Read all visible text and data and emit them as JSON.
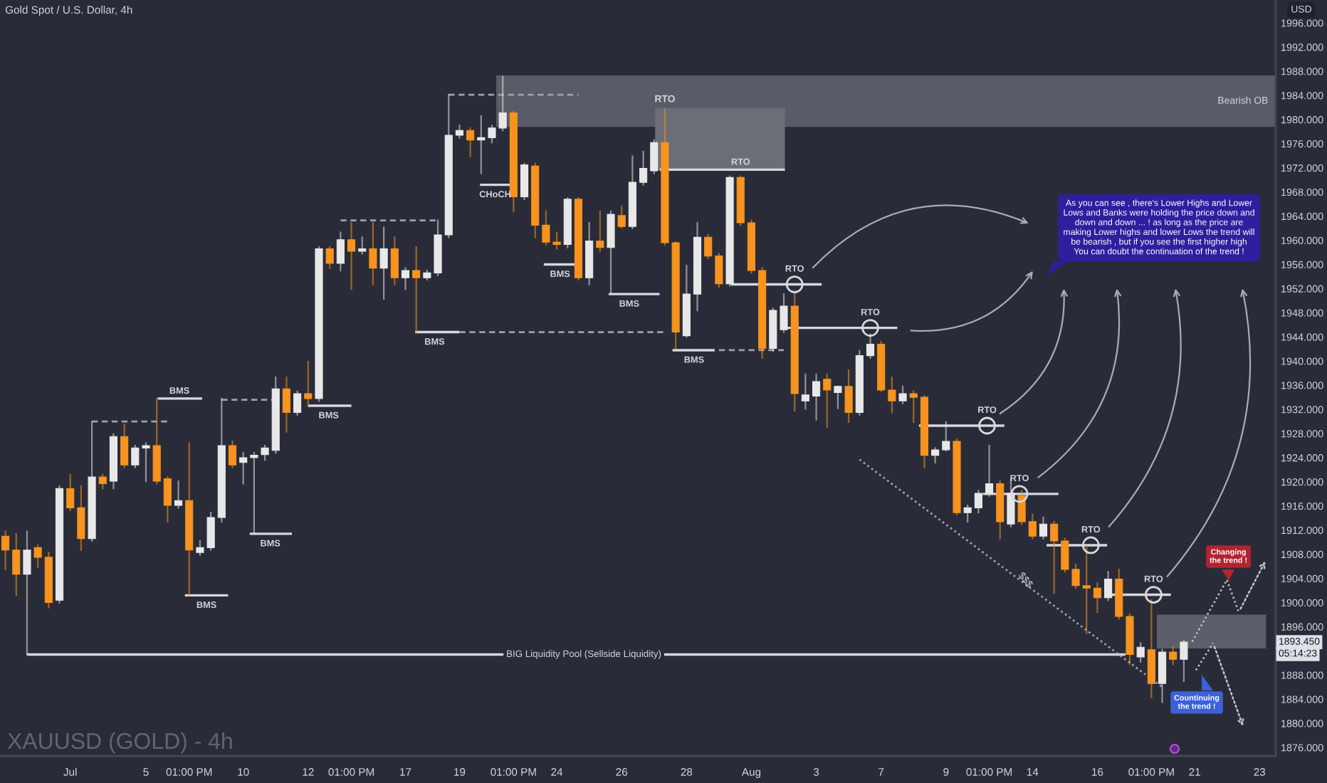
{
  "chart_data": {
    "type": "candlestick",
    "title": "Gold Spot / U.S. Dollar, 4h",
    "ylabel": "USD",
    "categories": [
      null,
      null,
      null,
      null,
      null,
      null,
      "Jul",
      null,
      null,
      null,
      null,
      null,
      null,
      "5",
      null,
      null,
      null,
      "01:00 PM",
      null,
      null,
      null,
      null,
      "10",
      null,
      null,
      null,
      null,
      null,
      "12",
      null,
      null,
      null,
      "01:00 PM",
      null,
      null,
      null,
      null,
      "17",
      null,
      null,
      null,
      null,
      "19",
      null,
      null,
      null,
      null,
      "01:00 PM",
      null,
      null,
      null,
      "24",
      null,
      null,
      null,
      null,
      null,
      "26",
      null,
      null,
      null,
      null,
      null,
      "28",
      null,
      null,
      null,
      null,
      null,
      "Aug",
      null,
      null,
      null,
      null,
      null,
      "3",
      null,
      null,
      null,
      null,
      null,
      "7",
      null,
      null,
      null,
      null,
      null,
      "9",
      null,
      null,
      null,
      "01:00 PM",
      null,
      null,
      null,
      "14",
      null,
      null,
      null,
      null,
      null,
      "16",
      null,
      null,
      null,
      null,
      "01:00 PM",
      null,
      null,
      null,
      "21",
      null,
      null,
      null,
      null,
      null,
      "23",
      null
    ],
    "ohlc": [
      [
        1911.0,
        1911.8,
        1905.5,
        1908.7
      ],
      [
        1908.7,
        1911.4,
        1901.2,
        1904.7
      ],
      [
        1904.7,
        1911.8,
        1891.4,
        1908.7
      ],
      [
        1909.1,
        1909.5,
        1905.9,
        1907.5
      ],
      [
        1907.5,
        1908.3,
        1899.2,
        1900.0
      ],
      [
        1900.4,
        1919.3,
        1900.0,
        1918.9
      ],
      [
        1918.9,
        1921.2,
        1915.3,
        1915.7
      ],
      [
        1915.7,
        1919.3,
        1908.7,
        1910.6
      ],
      [
        1910.6,
        1929.9,
        1910.2,
        1920.8
      ],
      [
        1920.8,
        1921.2,
        1918.9,
        1919.7
      ],
      [
        1920.1,
        1927.9,
        1918.9,
        1927.5
      ],
      [
        1927.5,
        1929.5,
        1922.4,
        1922.8
      ],
      [
        1922.8,
        1926.0,
        1922.4,
        1925.6
      ],
      [
        1925.6,
        1926.4,
        1920.1,
        1926.0
      ],
      [
        1926.0,
        1933.8,
        1919.7,
        1920.1
      ],
      [
        1920.5,
        1920.8,
        1913.4,
        1916.1
      ],
      [
        1916.1,
        1920.1,
        1915.7,
        1916.9
      ],
      [
        1916.9,
        1926.4,
        1901.2,
        1908.7
      ],
      [
        1908.3,
        1910.2,
        1907.9,
        1909.1
      ],
      [
        1909.1,
        1914.9,
        1908.7,
        1914.1
      ],
      [
        1914.1,
        1933.8,
        1913.4,
        1926.0
      ],
      [
        1926.0,
        1926.7,
        1922.4,
        1922.8
      ],
      [
        1923.2,
        1924.8,
        1919.7,
        1924.0
      ],
      [
        1924.0,
        1924.8,
        1911.4,
        1924.4
      ],
      [
        1924.5,
        1926.0,
        1923.6,
        1925.6
      ],
      [
        1925.2,
        1937.3,
        1924.8,
        1935.4
      ],
      [
        1935.4,
        1937.3,
        1928.3,
        1931.5
      ],
      [
        1931.5,
        1935.0,
        1931.1,
        1934.6
      ],
      [
        1934.6,
        1939.9,
        1932.6,
        1933.8
      ],
      [
        1933.8,
        1958.9,
        1933.4,
        1958.6
      ],
      [
        1958.6,
        1958.9,
        1955.4,
        1956.2
      ],
      [
        1956.2,
        1961.3,
        1955.0,
        1960.1
      ],
      [
        1960.1,
        1962.9,
        1951.9,
        1958.2
      ],
      [
        1958.2,
        1960.5,
        1957.8,
        1958.6
      ],
      [
        1958.6,
        1962.9,
        1952.7,
        1955.4
      ],
      [
        1955.4,
        1962.1,
        1950.3,
        1958.6
      ],
      [
        1958.6,
        1960.5,
        1952.7,
        1953.8
      ],
      [
        1953.8,
        1955.4,
        1951.9,
        1955.0
      ],
      [
        1955.0,
        1958.9,
        1944.8,
        1953.8
      ],
      [
        1953.8,
        1955.0,
        1953.5,
        1954.6
      ],
      [
        1954.6,
        1963.3,
        1954.2,
        1960.9
      ],
      [
        1960.9,
        1984.1,
        1960.5,
        1977.4
      ],
      [
        1977.4,
        1979.0,
        1977.0,
        1978.2
      ],
      [
        1978.2,
        1978.6,
        1973.9,
        1976.6
      ],
      [
        1976.6,
        1980.6,
        1971.1,
        1977.0
      ],
      [
        1977.0,
        1979.0,
        1976.2,
        1978.6
      ],
      [
        1978.6,
        1987.1,
        1978.2,
        1981.1
      ],
      [
        1981.1,
        1981.3,
        1964.8,
        1967.2
      ],
      [
        1967.2,
        1972.7,
        1966.8,
        1972.5
      ],
      [
        1972.3,
        1972.7,
        1960.5,
        1962.5
      ],
      [
        1962.5,
        1964.8,
        1959.3,
        1959.7
      ],
      [
        1959.7,
        1961.3,
        1958.6,
        1959.3
      ],
      [
        1959.3,
        1967.0,
        1958.8,
        1966.8
      ],
      [
        1966.8,
        1967.0,
        1953.5,
        1953.8
      ],
      [
        1953.8,
        1962.9,
        1952.7,
        1959.9
      ],
      [
        1959.9,
        1964.8,
        1958.2,
        1958.8
      ],
      [
        1958.8,
        1964.8,
        1951.1,
        1964.3
      ],
      [
        1964.1,
        1965.6,
        1962.1,
        1962.3
      ],
      [
        1962.3,
        1973.9,
        1962.0,
        1969.6
      ],
      [
        1969.6,
        1974.7,
        1969.2,
        1971.9
      ],
      [
        1971.5,
        1976.6,
        1971.1,
        1976.2
      ],
      [
        1976.2,
        1981.7,
        1959.3,
        1959.6
      ],
      [
        1959.6,
        1959.7,
        1942.1,
        1944.8
      ],
      [
        1944.2,
        1955.8,
        1944.0,
        1951.1
      ],
      [
        1951.1,
        1962.9,
        1948.4,
        1960.5
      ],
      [
        1960.5,
        1960.9,
        1957.0,
        1957.4
      ],
      [
        1957.4,
        1957.8,
        1952.3,
        1952.8
      ],
      [
        1952.8,
        1970.6,
        1952.5,
        1970.4
      ],
      [
        1970.4,
        1970.6,
        1962.5,
        1962.9
      ],
      [
        1962.9,
        1963.3,
        1954.6,
        1955.0
      ],
      [
        1955.0,
        1955.4,
        1940.5,
        1942.1
      ],
      [
        1942.1,
        1948.7,
        1941.7,
        1948.4
      ],
      [
        1945.2,
        1951.1,
        1944.8,
        1949.1
      ],
      [
        1949.1,
        1951.5,
        1931.8,
        1934.6
      ],
      [
        1933.4,
        1937.8,
        1932.1,
        1934.4
      ],
      [
        1934.2,
        1937.8,
        1930.3,
        1936.6
      ],
      [
        1937.0,
        1937.8,
        1929.1,
        1935.2
      ],
      [
        1934.8,
        1935.8,
        1932.2,
        1935.8
      ],
      [
        1935.8,
        1938.5,
        1929.9,
        1931.5
      ],
      [
        1931.5,
        1941.7,
        1931.1,
        1940.9
      ],
      [
        1940.9,
        1944.4,
        1940.5,
        1942.8
      ],
      [
        1942.8,
        1943.2,
        1935.0,
        1935.2
      ],
      [
        1935.2,
        1937.3,
        1931.5,
        1933.4
      ],
      [
        1933.4,
        1935.8,
        1933.0,
        1934.6
      ],
      [
        1934.6,
        1935.0,
        1929.9,
        1934.0
      ],
      [
        1934.0,
        1934.2,
        1922.4,
        1924.4
      ],
      [
        1924.4,
        1925.6,
        1923.2,
        1925.3
      ],
      [
        1925.3,
        1929.9,
        1925.2,
        1926.7
      ],
      [
        1926.7,
        1927.1,
        1914.6,
        1914.9
      ],
      [
        1914.9,
        1916.1,
        1913.4,
        1915.7
      ],
      [
        1915.7,
        1918.5,
        1914.9,
        1918.1
      ],
      [
        1918.1,
        1926.0,
        1917.7,
        1919.7
      ],
      [
        1919.7,
        1920.1,
        1910.6,
        1913.4
      ],
      [
        1913.0,
        1920.5,
        1912.6,
        1918.1
      ],
      [
        1917.7,
        1918.5,
        1913.0,
        1913.4
      ],
      [
        1913.4,
        1914.6,
        1910.6,
        1911.0
      ],
      [
        1911.0,
        1914.1,
        1910.6,
        1913.0
      ],
      [
        1913.0,
        1913.4,
        1901.6,
        1910.2
      ],
      [
        1910.2,
        1910.6,
        1905.1,
        1905.5
      ],
      [
        1905.5,
        1906.3,
        1902.4,
        1902.8
      ],
      [
        1902.8,
        1909.4,
        1894.9,
        1902.4
      ],
      [
        1902.4,
        1903.2,
        1898.4,
        1900.8
      ],
      [
        1900.8,
        1905.1,
        1900.4,
        1903.9
      ],
      [
        1903.9,
        1905.5,
        1897.3,
        1897.7
      ],
      [
        1897.7,
        1898.1,
        1889.8,
        1891.4
      ],
      [
        1891.0,
        1893.3,
        1890.2,
        1892.6
      ],
      [
        1892.2,
        1900.4,
        1884.3,
        1886.6
      ],
      [
        1886.6,
        1892.2,
        1883.5,
        1891.8
      ],
      [
        1891.8,
        1892.6,
        1889.8,
        1890.6
      ],
      [
        1890.6,
        1893.7,
        1887.0,
        1893.45
      ],
      null,
      null,
      null,
      null,
      null,
      null,
      null,
      null
    ],
    "colors": [
      "#f7931e",
      "#f7931e",
      "#e8e8e8",
      "#f7931e",
      "#f7931e",
      "#e8e8e8",
      "#f7931e",
      "#f7931e",
      "#e8e8e8",
      "#f7931e",
      "#e8e8e8",
      "#f7931e",
      "#e8e8e8",
      "#e8e8e8",
      "#f7931e",
      "#f7931e",
      "#e8e8e8",
      "#f7931e",
      "#e8e8e8",
      "#e8e8e8",
      "#e8e8e8",
      "#f7931e",
      "#e8e8e8",
      "#e8e8e8",
      "#e8e8e8",
      "#e8e8e8",
      "#f7931e",
      "#e8e8e8",
      "#f7931e",
      "#e8e8e8",
      "#f7931e",
      "#e8e8e8",
      "#f7931e",
      "#e8e8e8",
      "#f7931e",
      "#e8e8e8",
      "#f7931e",
      "#e8e8e8",
      "#f7931e",
      "#e8e8e8",
      "#e8e8e8",
      "#e8e8e8",
      "#e8e8e8",
      "#f7931e",
      "#e8e8e8",
      "#e8e8e8",
      "#e8e8e8",
      "#f7931e",
      "#e8e8e8",
      "#f7931e",
      "#f7931e",
      "#f7931e",
      "#e8e8e8",
      "#f7931e",
      "#e8e8e8",
      "#f7931e",
      "#e8e8e8",
      "#f7931e",
      "#e8e8e8",
      "#e8e8e8",
      "#e8e8e8",
      "#f7931e",
      "#f7931e",
      "#e8e8e8",
      "#e8e8e8",
      "#f7931e",
      "#f7931e",
      "#e8e8e8",
      "#f7931e",
      "#f7931e",
      "#f7931e",
      "#e8e8e8",
      "#e8e8e8",
      "#f7931e",
      "#e8e8e8",
      "#e8e8e8",
      "#f7931e",
      "#e8e8e8",
      "#f7931e",
      "#e8e8e8",
      "#e8e8e8",
      "#f7931e",
      "#f7931e",
      "#e8e8e8",
      "#f7931e",
      "#f7931e",
      "#e8e8e8",
      "#e8e8e8",
      "#f7931e",
      "#e8e8e8",
      "#e8e8e8",
      "#e8e8e8",
      "#f7931e",
      "#e8e8e8",
      "#f7931e",
      "#f7931e",
      "#e8e8e8",
      "#f7931e",
      "#f7931e",
      "#f7931e",
      "#f7931e",
      "#f7931e",
      "#e8e8e8",
      "#f7931e",
      "#f7931e",
      "#e8e8e8",
      "#f7931e",
      "#e8e8e8",
      "#f7931e",
      "#e8e8e8",
      null,
      null,
      null,
      null,
      null,
      null,
      null,
      null
    ],
    "series": [
      {
        "type": "line",
        "color": "#9ea1aa",
        "line_style": "dotted",
        "values": [
          null,
          null,
          null,
          null,
          null,
          null,
          null,
          null,
          null,
          null,
          null,
          null,
          null,
          null,
          null,
          null,
          null,
          null,
          null,
          null,
          null,
          null,
          null,
          null,
          null,
          null,
          null,
          null,
          null,
          null,
          null,
          null,
          null,
          null,
          null,
          null,
          null,
          null,
          null,
          null,
          null,
          null,
          null,
          null,
          null,
          null,
          null,
          null,
          null,
          null,
          null,
          null,
          null,
          null,
          null,
          null,
          null,
          null,
          null,
          null,
          null,
          null,
          null,
          null,
          null,
          null,
          null,
          null,
          null,
          null,
          null,
          null,
          null,
          null,
          null,
          null,
          null,
          null,
          null,
          1923.7,
          null,
          null,
          null,
          null,
          null,
          null,
          null,
          null,
          null,
          null,
          null,
          null,
          null,
          null,
          null,
          null,
          null,
          null,
          null,
          null,
          null,
          null,
          null,
          null,
          null,
          null,
          null,
          1886.0,
          null,
          null,
          null,
          null,
          null,
          null,
          null,
          null,
          null,
          null
        ]
      },
      {
        "type": "line",
        "color": "#9ea1aa",
        "line_style": "dashed",
        "values": [
          null,
          null,
          null,
          null,
          null,
          null,
          null,
          null,
          1930.0,
          null,
          null,
          null,
          null,
          null,
          null,
          1930.0,
          null,
          null,
          null,
          null,
          null,
          null,
          null,
          null,
          null,
          null,
          null,
          null,
          null,
          null,
          null,
          null,
          null,
          null,
          null,
          null,
          null,
          null,
          null,
          null,
          null,
          null,
          null,
          null,
          null,
          null,
          null,
          null,
          null,
          null,
          null,
          null,
          null,
          null,
          null,
          null,
          null,
          null,
          null,
          null,
          null,
          null,
          null,
          null,
          null,
          null,
          null,
          null,
          null,
          null,
          null,
          null,
          null,
          null,
          null,
          null,
          null,
          null,
          null,
          null,
          null,
          null,
          null,
          null,
          null,
          null,
          null,
          null,
          null,
          null,
          null,
          null,
          null,
          null,
          null,
          null,
          null,
          null,
          null,
          null,
          null,
          null,
          null,
          null,
          null,
          null,
          null,
          null,
          null,
          null,
          null,
          null,
          null,
          null,
          null,
          null,
          null,
          null
        ]
      },
      {
        "type": "line",
        "color": "#9ea1aa",
        "line_style": "dashed",
        "values": [
          null,
          null,
          null,
          null,
          null,
          null,
          null,
          null,
          null,
          null,
          null,
          null,
          null,
          null,
          null,
          null,
          null,
          null,
          null,
          null,
          1933.6,
          null,
          null,
          null,
          null,
          1933.6,
          null,
          null,
          null,
          null,
          null,
          null,
          null,
          null,
          null,
          null,
          null,
          null,
          null,
          null,
          null,
          null,
          null,
          null,
          null,
          null,
          null,
          null,
          null,
          null,
          null,
          null,
          null,
          null,
          null,
          null,
          null,
          null,
          null,
          null,
          null,
          null,
          null,
          null,
          null,
          null,
          null,
          null,
          null,
          null,
          null,
          null,
          null,
          null,
          null,
          null,
          null,
          null,
          null,
          null,
          null,
          null,
          null,
          null,
          null,
          null,
          null,
          null,
          null,
          null,
          null,
          null,
          null,
          null,
          null,
          null,
          null,
          null,
          null,
          null,
          null,
          null,
          null,
          null,
          null,
          null,
          null,
          null,
          null,
          null,
          null,
          null,
          null,
          null,
          null,
          null,
          null,
          null
        ]
      },
      {
        "type": "line",
        "color": "#9ea1aa",
        "line_style": "dashed",
        "values": [
          null,
          null,
          null,
          null,
          null,
          null,
          null,
          null,
          null,
          null,
          null,
          null,
          null,
          null,
          null,
          null,
          null,
          null,
          null,
          null,
          null,
          null,
          null,
          null,
          null,
          null,
          null,
          null,
          null,
          null,
          null,
          1963.3,
          null,
          null,
          null,
          null,
          null,
          null,
          null,
          null,
          1963.3,
          null,
          null,
          null,
          null,
          null,
          null,
          null,
          null,
          null,
          null,
          null,
          null,
          null,
          null,
          null,
          null,
          null,
          null,
          null,
          null,
          null,
          null,
          null,
          null,
          null,
          null,
          null,
          null,
          null,
          null,
          null,
          null,
          null,
          null,
          null,
          null,
          null,
          null,
          null,
          null,
          null,
          null,
          null,
          null,
          null,
          null,
          null,
          null,
          null,
          null,
          null,
          null,
          null,
          null,
          null,
          null,
          null,
          null,
          null,
          null,
          null,
          null,
          null,
          null,
          null,
          null,
          null,
          null,
          null,
          null,
          null,
          null,
          null,
          null,
          null,
          null,
          null
        ]
      },
      {
        "type": "line",
        "color": "#9ea1aa",
        "line_style": "dashed",
        "values": [
          null,
          null,
          null,
          null,
          null,
          null,
          null,
          null,
          null,
          null,
          null,
          null,
          null,
          null,
          null,
          null,
          null,
          null,
          null,
          null,
          null,
          null,
          null,
          null,
          null,
          null,
          null,
          null,
          null,
          null,
          null,
          null,
          null,
          null,
          null,
          null,
          null,
          null,
          null,
          null,
          null,
          null,
          1944.8,
          null,
          null,
          null,
          null,
          null,
          null,
          null,
          null,
          null,
          null,
          null,
          null,
          null,
          null,
          null,
          null,
          null,
          null,
          1944.8,
          null,
          null,
          null,
          null,
          null,
          null,
          null,
          null,
          null,
          null,
          null,
          null,
          null,
          null,
          null,
          null,
          null,
          null,
          null,
          null,
          null,
          null,
          null,
          null,
          null,
          null,
          null,
          null,
          null,
          null,
          null,
          null,
          null,
          null,
          null,
          null,
          null,
          null,
          null,
          null,
          null,
          null,
          null,
          null,
          null,
          null,
          null,
          null,
          null,
          null,
          null,
          null,
          null,
          null,
          null,
          null
        ]
      },
      {
        "type": "line",
        "color": "#9ea1aa",
        "line_style": "dashed",
        "values": [
          null,
          null,
          null,
          null,
          null,
          null,
          null,
          null,
          null,
          null,
          null,
          null,
          null,
          null,
          null,
          null,
          null,
          null,
          null,
          null,
          null,
          null,
          null,
          null,
          null,
          null,
          null,
          null,
          null,
          null,
          null,
          null,
          null,
          null,
          null,
          null,
          null,
          null,
          null,
          null,
          null,
          1984.1,
          null,
          null,
          null,
          null,
          null,
          null,
          null,
          null,
          null,
          null,
          null,
          1984.1,
          null,
          null,
          null,
          null,
          null,
          null,
          null,
          null,
          null,
          null,
          null,
          null,
          null,
          null,
          null,
          null,
          null,
          null,
          null,
          null,
          null,
          null,
          null,
          null,
          null,
          null,
          null,
          null,
          null,
          null,
          null,
          null,
          null,
          null,
          null,
          null,
          null,
          null,
          null,
          null,
          null,
          null,
          null,
          null,
          null,
          null,
          null,
          null,
          null,
          null,
          null,
          null,
          null,
          null,
          null,
          null,
          null,
          null,
          null,
          null,
          null,
          null,
          null,
          null
        ]
      },
      {
        "type": "line",
        "color": "#9ea1aa",
        "line_style": "dashed",
        "values": [
          null,
          null,
          null,
          null,
          null,
          null,
          null,
          null,
          null,
          null,
          null,
          null,
          null,
          null,
          null,
          null,
          null,
          null,
          null,
          null,
          null,
          null,
          null,
          null,
          null,
          null,
          null,
          null,
          null,
          null,
          null,
          null,
          null,
          null,
          null,
          null,
          null,
          null,
          null,
          null,
          null,
          null,
          null,
          null,
          null,
          null,
          null,
          null,
          null,
          null,
          null,
          null,
          null,
          null,
          null,
          null,
          null,
          null,
          null,
          null,
          null,
          null,
          null,
          null,
          null,
          null,
          1941.8,
          null,
          null,
          null,
          null,
          null,
          1941.8,
          null,
          null,
          null,
          null,
          null,
          null,
          null,
          null,
          null,
          null,
          null,
          null,
          null,
          null,
          null,
          null,
          null,
          null,
          null,
          null,
          null,
          null,
          null,
          null,
          null,
          null,
          null,
          null,
          null,
          null,
          null,
          null,
          null,
          null,
          null,
          null,
          null,
          null,
          null,
          null,
          null,
          null,
          null,
          null,
          null
        ]
      }
    ],
    "ylim": [
      1874.6,
      1999.8
    ],
    "yticks": [
      {
        "value": 1876,
        "label": "1876.000"
      },
      {
        "value": 1880,
        "label": "1880.000"
      },
      {
        "value": 1884,
        "label": "1884.000"
      },
      {
        "value": 1888,
        "label": "1888.000"
      },
      {
        "value": 1896,
        "label": "1896.000"
      },
      {
        "value": 1900,
        "label": "1900.000"
      },
      {
        "value": 1904,
        "label": "1904.000"
      },
      {
        "value": 1908,
        "label": "1908.000"
      },
      {
        "value": 1912,
        "label": "1912.000"
      },
      {
        "value": 1916,
        "label": "1916.000"
      },
      {
        "value": 1920,
        "label": "1920.000"
      },
      {
        "value": 1924,
        "label": "1924.000"
      },
      {
        "value": 1928,
        "label": "1928.000"
      },
      {
        "value": 1932,
        "label": "1932.000"
      },
      {
        "value": 1936,
        "label": "1936.000"
      },
      {
        "value": 1940,
        "label": "1940.000"
      },
      {
        "value": 1944,
        "label": "1944.000"
      },
      {
        "value": 1948,
        "label": "1948.000"
      },
      {
        "value": 1952,
        "label": "1952.000"
      },
      {
        "value": 1956,
        "label": "1956.000"
      },
      {
        "value": 1960,
        "label": "1960.000"
      },
      {
        "value": 1964,
        "label": "1964.000"
      },
      {
        "value": 1968,
        "label": "1968.000"
      },
      {
        "value": 1972,
        "label": "1972.000"
      },
      {
        "value": 1976,
        "label": "1976.000"
      },
      {
        "value": 1980,
        "label": "1980.000"
      },
      {
        "value": 1984,
        "label": "1984.000"
      },
      {
        "value": 1988,
        "label": "1988.000"
      },
      {
        "value": 1992,
        "label": "1992.000"
      },
      {
        "value": 1996,
        "label": "1996.000"
      }
    ],
    "bands": [
      {
        "axis": "y",
        "from": 1978.8,
        "to": 1987.3,
        "label": "Bearish OB",
        "color": "#595c66"
      },
      {
        "axis": "y",
        "from": 1971.7,
        "to": 1981.9,
        "label": "RTO",
        "color": "#6b6e77"
      },
      {
        "axis": "y",
        "from": 1892.4,
        "to": 1898.0,
        "color": "#5c5f69"
      }
    ],
    "ref_lines": [
      {
        "axis": "y",
        "value": 1891.4,
        "label": "BIG Liquidity Pool (Sellside Liquidity)",
        "color": "#d6d8de"
      },
      {
        "axis": "y",
        "value": 1933.8,
        "label": "BMS",
        "color": "#d6d8de"
      },
      {
        "axis": "y",
        "value": 1901.2,
        "label": "BMS",
        "color": "#d6d8de"
      },
      {
        "axis": "y",
        "value": 1911.4,
        "label": "BMS",
        "color": "#d6d8de"
      },
      {
        "axis": "y",
        "value": 1932.6,
        "label": "BMS",
        "color": "#d6d8de"
      },
      {
        "axis": "y",
        "value": 1944.8,
        "label": "BMS",
        "color": "#d6d8de"
      },
      {
        "axis": "y",
        "value": 1969.2,
        "label": "CHoCH",
        "color": "#d6d8de"
      },
      {
        "axis": "y",
        "value": 1956.0,
        "label": "BMS",
        "color": "#d6d8de"
      },
      {
        "axis": "y",
        "value": 1951.1,
        "label": "BMS",
        "color": "#d6d8de"
      },
      {
        "axis": "y",
        "value": 1941.8,
        "label": "BMS",
        "color": "#d6d8de"
      },
      {
        "axis": "y",
        "value": 1971.7,
        "label": "RTO",
        "color": "#d6d8de"
      },
      {
        "axis": "y",
        "value": 1952.7,
        "label": "RTO",
        "color": "#d6d8de"
      },
      {
        "axis": "y",
        "value": 1945.5,
        "label": "RTO",
        "color": "#d6d8de"
      },
      {
        "axis": "y",
        "value": 1929.3,
        "label": "RTO",
        "color": "#d6d8de"
      },
      {
        "axis": "y",
        "value": 1918.0,
        "label": "RTO",
        "color": "#d6d8de"
      },
      {
        "axis": "y",
        "value": 1909.5,
        "label": "RTO",
        "color": "#d6d8de"
      },
      {
        "axis": "y",
        "value": 1901.3,
        "label": "RTO",
        "color": "#d6d8de"
      }
    ],
    "annotations": [
      {
        "text": "$$$",
        "y": 1903.2
      },
      "As you can see , there's Lower Highs and Lower\nLows and Banks were holding the price down and\ndown and down ... ! as long as the price are\nmaking Lower highs and lower Lows the trend will\nbe bearish , but if you see the first higher high\nYou can doubt the continuation of the trend !",
      "Changing\nthe trend !",
      "Countinuing\nthe trend !",
      "XAUUSD (GOLD) - 4h",
      {
        "text": "1893.450",
        "y": 1893.45
      },
      "05:14:23"
    ]
  }
}
